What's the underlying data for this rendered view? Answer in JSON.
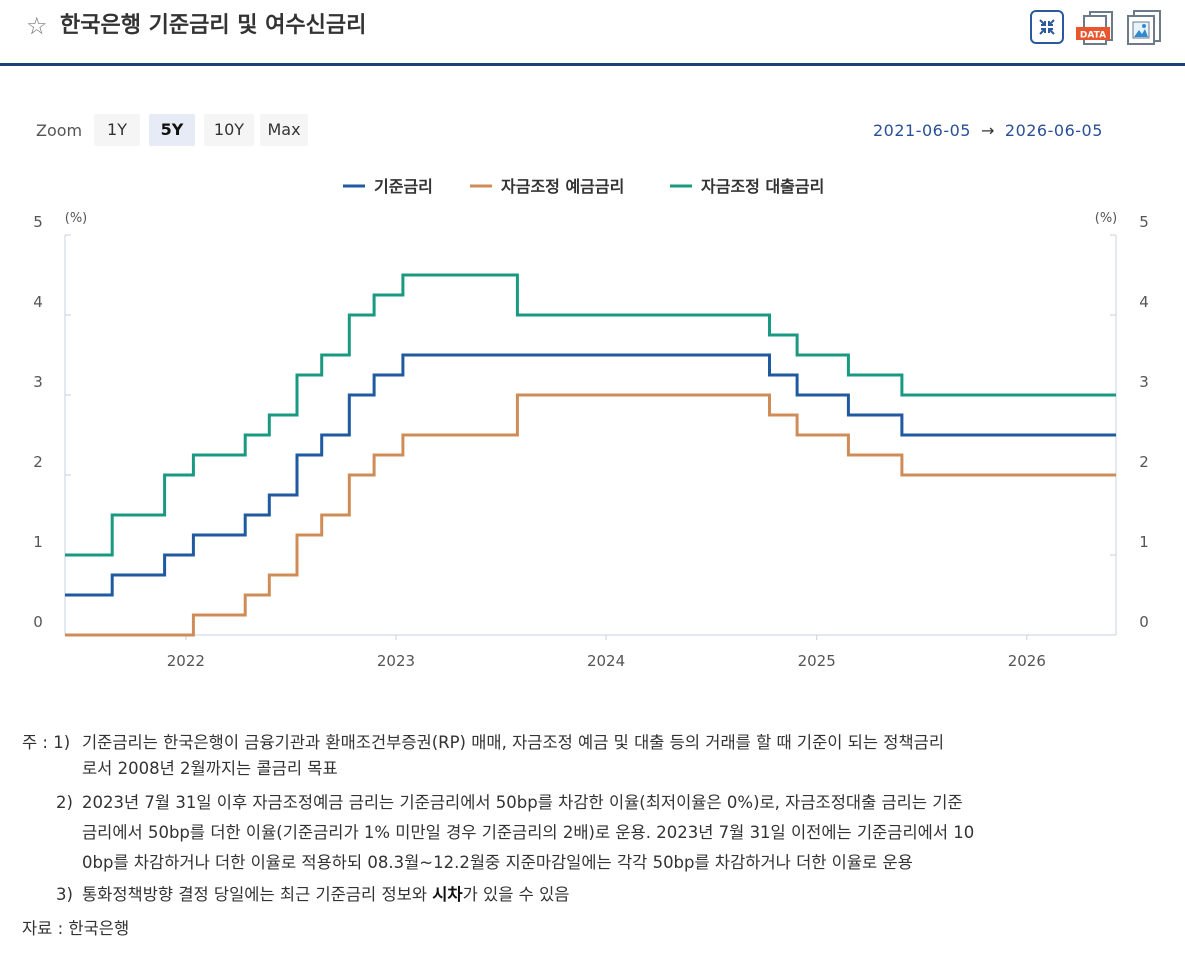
{
  "header": {
    "star_icon": "star-outline-icon",
    "title": "한국은행 기준금리 및 여수신금리",
    "data_badge": "DATA"
  },
  "zoom": {
    "label": "Zoom",
    "buttons": [
      "1Y",
      "5Y",
      "10Y",
      "Max"
    ],
    "active": "5Y"
  },
  "range": {
    "from": "2021-06-05",
    "arrow": "→",
    "to": "2026-06-05"
  },
  "chart_data": {
    "type": "line",
    "step": true,
    "x_axis": {
      "type": "date",
      "range": [
        "2021-06-05",
        "2026-06-05"
      ],
      "tick_labels": [
        "2022",
        "2023",
        "2024",
        "2025",
        "2026"
      ]
    },
    "y_axis": {
      "range": [
        0,
        5
      ],
      "ticks": [
        0,
        1,
        2,
        3,
        4,
        5
      ],
      "unit_label_left": "(%)",
      "unit_label_right": "(%)"
    },
    "grid": false,
    "legend_position": "top-center",
    "colors": {
      "base": "#1f5aa0",
      "deposit": "#d08c57",
      "loan": "#199a80"
    },
    "series": [
      {
        "name": "기준금리",
        "points": [
          [
            "2021-06-05",
            0.5
          ],
          [
            "2021-08-26",
            0.75
          ],
          [
            "2021-11-25",
            1.0
          ],
          [
            "2022-01-14",
            1.25
          ],
          [
            "2022-04-14",
            1.5
          ],
          [
            "2022-05-26",
            1.75
          ],
          [
            "2022-07-13",
            2.25
          ],
          [
            "2022-08-25",
            2.5
          ],
          [
            "2022-10-12",
            3.0
          ],
          [
            "2022-11-24",
            3.25
          ],
          [
            "2023-01-13",
            3.5
          ],
          [
            "2024-10-11",
            3.25
          ],
          [
            "2024-11-28",
            3.0
          ],
          [
            "2025-02-25",
            2.75
          ],
          [
            "2025-05-29",
            2.5
          ],
          [
            "2026-06-05",
            2.5
          ]
        ]
      },
      {
        "name": "자금조정 예금금리",
        "points": [
          [
            "2021-06-05",
            0.0
          ],
          [
            "2022-01-14",
            0.25
          ],
          [
            "2022-04-14",
            0.5
          ],
          [
            "2022-05-26",
            0.75
          ],
          [
            "2022-07-13",
            1.25
          ],
          [
            "2022-08-25",
            1.5
          ],
          [
            "2022-10-12",
            2.0
          ],
          [
            "2022-11-24",
            2.25
          ],
          [
            "2023-01-13",
            2.5
          ],
          [
            "2023-07-31",
            3.0
          ],
          [
            "2024-10-11",
            2.75
          ],
          [
            "2024-11-28",
            2.5
          ],
          [
            "2025-02-25",
            2.25
          ],
          [
            "2025-05-29",
            2.0
          ],
          [
            "2026-06-05",
            2.0
          ]
        ]
      },
      {
        "name": "자금조정 대출금리",
        "points": [
          [
            "2021-06-05",
            1.0
          ],
          [
            "2021-08-26",
            1.5
          ],
          [
            "2021-11-25",
            2.0
          ],
          [
            "2022-01-14",
            2.25
          ],
          [
            "2022-04-14",
            2.5
          ],
          [
            "2022-05-26",
            2.75
          ],
          [
            "2022-07-13",
            3.25
          ],
          [
            "2022-08-25",
            3.5
          ],
          [
            "2022-10-12",
            4.0
          ],
          [
            "2022-11-24",
            4.25
          ],
          [
            "2023-01-13",
            4.5
          ],
          [
            "2023-07-31",
            4.0
          ],
          [
            "2024-10-11",
            3.75
          ],
          [
            "2024-11-28",
            3.5
          ],
          [
            "2025-02-25",
            3.25
          ],
          [
            "2025-05-29",
            3.0
          ],
          [
            "2026-06-05",
            3.0
          ]
        ]
      }
    ]
  },
  "notes": {
    "n1_prefix": "주 : 1)",
    "n1_line1": "기준금리는 한국은행이 금융기관과 환매조건부증권(RP) 매매, 자금조정 예금 및 대출 등의 거래를 할 때 기준이 되는 정책금리",
    "n1_line2": "로서 2008년 2월까지는 콜금리 목표",
    "n2_prefix": "2)",
    "n2_line1": "2023년 7월 31일 이후 자금조정예금 금리는 기준금리에서 50bp를 차감한 이율(최저이율은 0%)로, 자금조정대출 금리는 기준",
    "n2_line2": "금리에서 50bp를 더한 이율(기준금리가 1% 미만일 경우 기준금리의 2배)로 운용. 2023년 7월 31일 이전에는 기준금리에서 10",
    "n2_line3": "0bp를 차감하거나 더한 이율로 적용하되 08.3월~12.2월중 지준마감일에는 각각 50bp를 차감하거나 더한 이율로 운용",
    "n3_prefix": "3)",
    "n3_before": "통화정책방향 결정 당일에는 최근 기준금리 정보와 ",
    "n3_bold": "시차",
    "n3_after": "가 있을 수 있음",
    "source": "자료 : 한국은행"
  }
}
